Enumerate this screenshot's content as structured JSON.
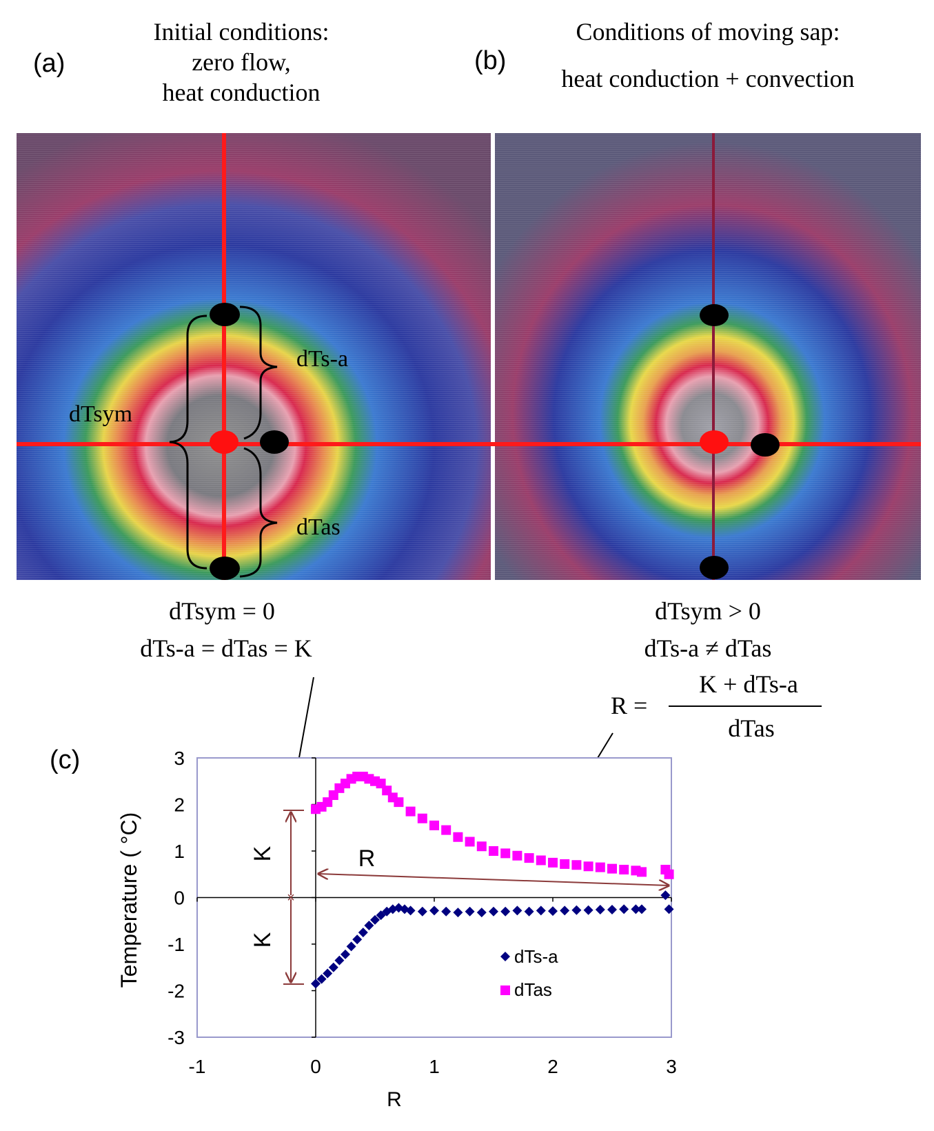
{
  "panel_a": {
    "letter": "(a)",
    "title_lines": [
      "Initial conditions:",
      "zero flow,",
      "heat conduction"
    ],
    "labels": {
      "dts_a": "dTs-a",
      "dtsym": "dTsym",
      "dtas": "dTas"
    },
    "caption_lines": [
      "dTsym = 0",
      "dTs-a = dTas = K"
    ]
  },
  "panel_b": {
    "letter": "(b)",
    "title_lines": [
      "Conditions of moving sap:",
      "heat conduction + convection"
    ],
    "caption_lines": [
      "dTsym > 0",
      "dTs-a ≠ dTas"
    ],
    "formula": {
      "lhs": "R =",
      "numerator": "K + dTs-a",
      "denominator": "dTas"
    }
  },
  "colors": {
    "axis_line": "#ff0000",
    "dts_a": "#000080",
    "dtas": "#ff00ff",
    "bracket": "#8b3a3a",
    "plot_frame": "#9999cc"
  },
  "chart_data": {
    "type": "scatter",
    "panel_letter": "(c)",
    "xlabel": "R",
    "ylabel": "Temperature ( °C)",
    "xlim": [
      -1,
      3
    ],
    "ylim": [
      -3,
      3
    ],
    "xticks": [
      "-1",
      "0",
      "1",
      "2",
      "3"
    ],
    "yticks": [
      "3",
      "2",
      "1",
      "0",
      "-1",
      "-2",
      "-3"
    ],
    "legend_position": "bottom-right",
    "annotations": {
      "k_upper": "K",
      "k_lower": "K",
      "r_arrow": "R"
    },
    "series": [
      {
        "name": "dTs-a",
        "marker": "diamond",
        "x": [
          0,
          0.05,
          0.1,
          0.15,
          0.2,
          0.25,
          0.3,
          0.35,
          0.4,
          0.45,
          0.5,
          0.55,
          0.6,
          0.65,
          0.7,
          0.75,
          0.8,
          0.9,
          1.0,
          1.1,
          1.2,
          1.3,
          1.4,
          1.5,
          1.6,
          1.7,
          1.8,
          1.9,
          2.0,
          2.1,
          2.2,
          2.3,
          2.4,
          2.5,
          2.6,
          2.7,
          2.75,
          2.95,
          2.98
        ],
        "y": [
          -1.85,
          -1.75,
          -1.63,
          -1.5,
          -1.35,
          -1.22,
          -1.05,
          -0.9,
          -0.75,
          -0.6,
          -0.48,
          -0.38,
          -0.3,
          -0.25,
          -0.22,
          -0.25,
          -0.28,
          -0.3,
          -0.28,
          -0.3,
          -0.32,
          -0.3,
          -0.32,
          -0.3,
          -0.3,
          -0.28,
          -0.3,
          -0.28,
          -0.29,
          -0.28,
          -0.27,
          -0.27,
          -0.26,
          -0.26,
          -0.25,
          -0.25,
          -0.25,
          0.05,
          -0.25
        ]
      },
      {
        "name": "dTas",
        "marker": "square",
        "x": [
          0,
          0.05,
          0.1,
          0.15,
          0.2,
          0.25,
          0.3,
          0.35,
          0.4,
          0.45,
          0.5,
          0.55,
          0.6,
          0.65,
          0.7,
          0.8,
          0.9,
          1.0,
          1.1,
          1.2,
          1.3,
          1.4,
          1.5,
          1.6,
          1.7,
          1.8,
          1.9,
          2.0,
          2.1,
          2.2,
          2.3,
          2.4,
          2.5,
          2.6,
          2.7,
          2.75,
          2.95,
          2.98
        ],
        "y": [
          1.9,
          1.95,
          2.05,
          2.2,
          2.35,
          2.45,
          2.55,
          2.6,
          2.6,
          2.55,
          2.5,
          2.45,
          2.3,
          2.15,
          2.05,
          1.85,
          1.7,
          1.55,
          1.45,
          1.3,
          1.2,
          1.1,
          1.0,
          0.95,
          0.9,
          0.85,
          0.8,
          0.75,
          0.72,
          0.7,
          0.67,
          0.65,
          0.62,
          0.6,
          0.58,
          0.55,
          0.6,
          0.5
        ]
      }
    ]
  }
}
